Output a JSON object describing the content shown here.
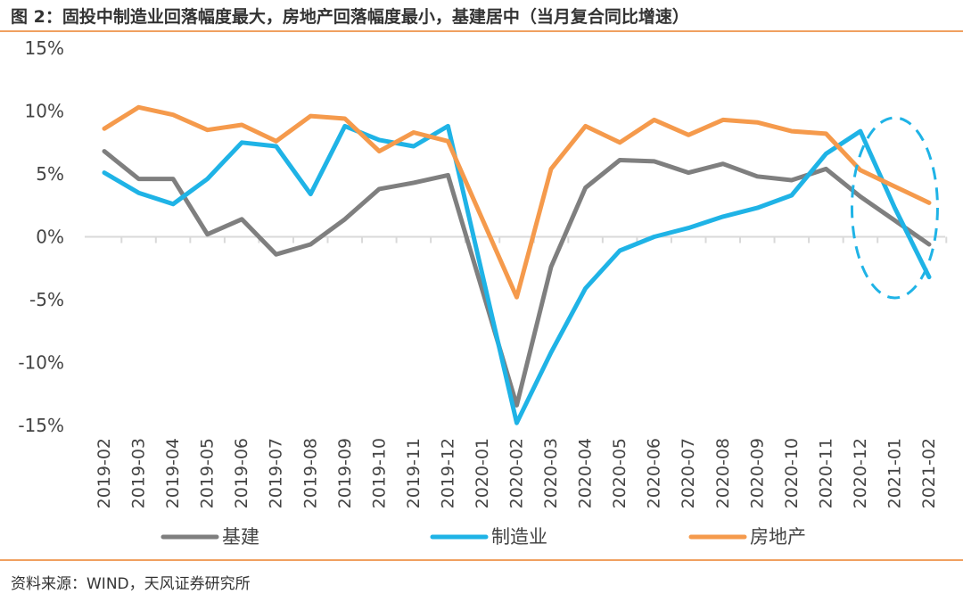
{
  "figure": {
    "title": "图 2：固投中制造业回落幅度最大，房地产回落幅度最小，基建居中（当月复合同比增速）",
    "source": "资料来源：WIND，天风证券研究所"
  },
  "colors": {
    "rule": "#f0a060",
    "axis": "#d9d9d9",
    "annotation": "#1fb3e6"
  },
  "chart_data": {
    "type": "line",
    "categories": [
      "2019-02",
      "2019-03",
      "2019-04",
      "2019-05",
      "2019-06",
      "2019-07",
      "2019-08",
      "2019-09",
      "2019-10",
      "2019-11",
      "2019-12",
      "2020-01",
      "2020-02",
      "2020-03",
      "2020-04",
      "2020-05",
      "2020-06",
      "2020-07",
      "2020-08",
      "2020-09",
      "2020-10",
      "2020-11",
      "2020-12",
      "2021-01",
      "2021-02"
    ],
    "y_ticks": [
      "15%",
      "10%",
      "5%",
      "0%",
      "-5%",
      "-10%",
      "-15%"
    ],
    "y_tick_values": [
      15,
      10,
      5,
      0,
      -5,
      -10,
      -15
    ],
    "ylim": [
      -15,
      15
    ],
    "series": [
      {
        "name": "基建",
        "color": "#7f7f7f",
        "values": [
          6.8,
          4.6,
          4.6,
          0.2,
          1.4,
          -1.4,
          -0.6,
          1.4,
          3.8,
          4.3,
          4.9,
          null,
          -13.4,
          -2.4,
          3.9,
          6.1,
          6.0,
          5.1,
          5.8,
          4.8,
          4.5,
          5.4,
          3.2,
          1.3,
          -0.6
        ]
      },
      {
        "name": "制造业",
        "color": "#1fb3e6",
        "values": [
          5.1,
          3.5,
          2.6,
          4.6,
          7.5,
          7.2,
          3.4,
          8.8,
          7.7,
          7.2,
          8.8,
          null,
          -14.8,
          -9.2,
          -4.1,
          -1.1,
          0.0,
          0.7,
          1.6,
          2.3,
          3.3,
          6.6,
          8.4,
          2.3,
          -3.2
        ]
      },
      {
        "name": "房地产",
        "color": "#f59a4c",
        "values": [
          8.6,
          10.3,
          9.7,
          8.5,
          8.9,
          7.6,
          9.6,
          9.4,
          6.8,
          8.3,
          7.6,
          null,
          -4.8,
          5.4,
          8.8,
          7.5,
          9.3,
          8.1,
          9.3,
          9.1,
          8.4,
          8.2,
          5.3,
          4.0,
          2.7
        ]
      }
    ],
    "annotations": [
      {
        "type": "dashed-ellipse",
        "around_categories": [
          "2020-12",
          "2021-02"
        ]
      }
    ],
    "legend_position": "bottom",
    "grid": false
  }
}
